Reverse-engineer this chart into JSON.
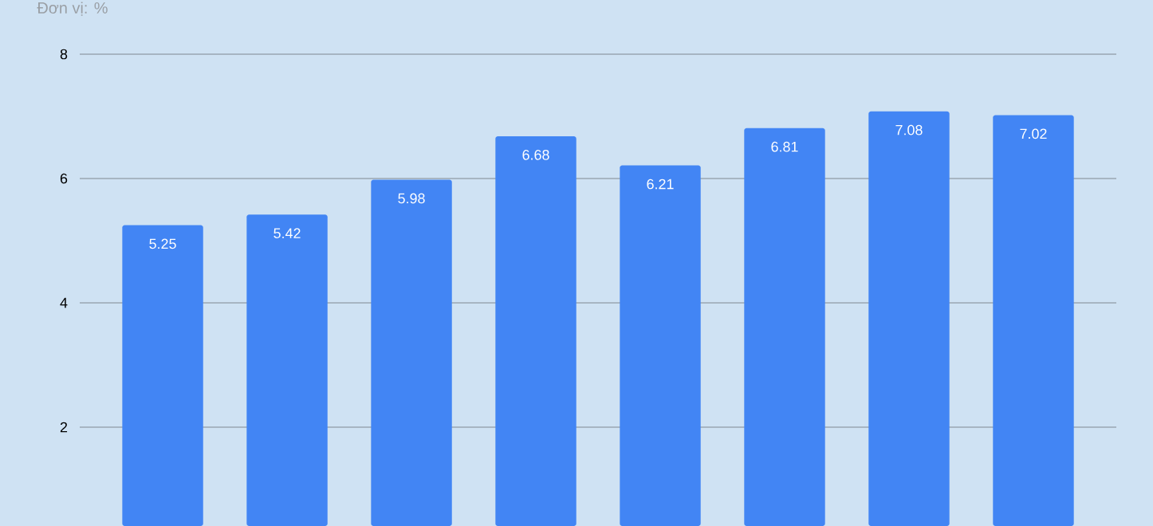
{
  "chart_data": {
    "type": "bar",
    "ylabel": "Đơn vị: %",
    "categories": [
      null,
      null,
      null,
      null,
      null,
      null,
      null,
      null
    ],
    "values": [
      5.25,
      5.42,
      5.98,
      6.68,
      6.21,
      6.81,
      7.08,
      7.02
    ],
    "color": "#4285f4",
    "ylim": [
      0.41,
      8
    ],
    "yticks": [
      2,
      4,
      6,
      8
    ],
    "grid": "y",
    "data_labels": true,
    "tick_labels": "y"
  }
}
